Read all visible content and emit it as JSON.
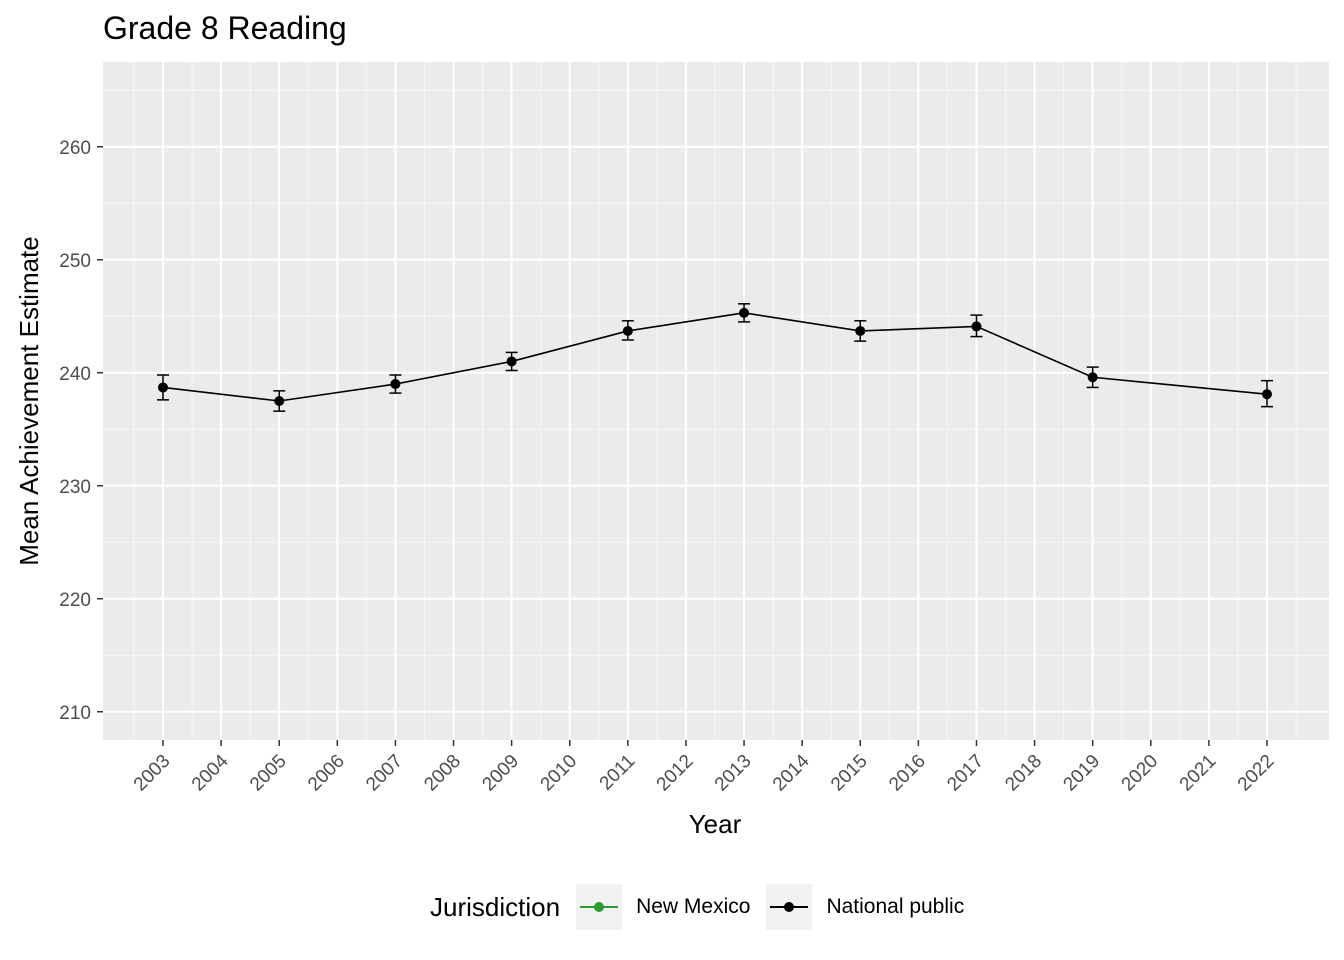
{
  "chart_data": {
    "type": "line",
    "title": "Grade 8 Reading",
    "xlabel": "Year",
    "ylabel": "Mean Achievement Estimate",
    "x_ticks": [
      "2003",
      "2004",
      "2005",
      "2006",
      "2007",
      "2008",
      "2009",
      "2010",
      "2011",
      "2012",
      "2013",
      "2014",
      "2015",
      "2016",
      "2017",
      "2018",
      "2019",
      "2020",
      "2021",
      "2022"
    ],
    "ylim": [
      207.5,
      267.5
    ],
    "y_ticks": [
      210,
      220,
      230,
      240,
      250,
      260
    ],
    "grid": true,
    "legend": {
      "title": "Jurisdiction",
      "position": "bottom",
      "entries": [
        {
          "name": "New Mexico",
          "color": "#2e9b2e"
        },
        {
          "name": "National public",
          "color": "#000000"
        }
      ]
    },
    "series": [
      {
        "name": "National public",
        "color": "#000000",
        "points": [
          {
            "x": "2003",
            "y": 238.7,
            "low": 237.6,
            "high": 239.8
          },
          {
            "x": "2005",
            "y": 237.5,
            "low": 236.6,
            "high": 238.4
          },
          {
            "x": "2007",
            "y": 239.0,
            "low": 238.2,
            "high": 239.8
          },
          {
            "x": "2009",
            "y": 241.0,
            "low": 240.2,
            "high": 241.8
          },
          {
            "x": "2011",
            "y": 243.7,
            "low": 242.9,
            "high": 244.6
          },
          {
            "x": "2013",
            "y": 245.3,
            "low": 244.5,
            "high": 246.1
          },
          {
            "x": "2015",
            "y": 243.7,
            "low": 242.8,
            "high": 244.6
          },
          {
            "x": "2017",
            "y": 244.1,
            "low": 243.2,
            "high": 245.1
          },
          {
            "x": "2019",
            "y": 239.6,
            "low": 238.7,
            "high": 240.5
          },
          {
            "x": "2022",
            "y": 238.1,
            "low": 237.0,
            "high": 239.3
          }
        ]
      }
    ]
  }
}
